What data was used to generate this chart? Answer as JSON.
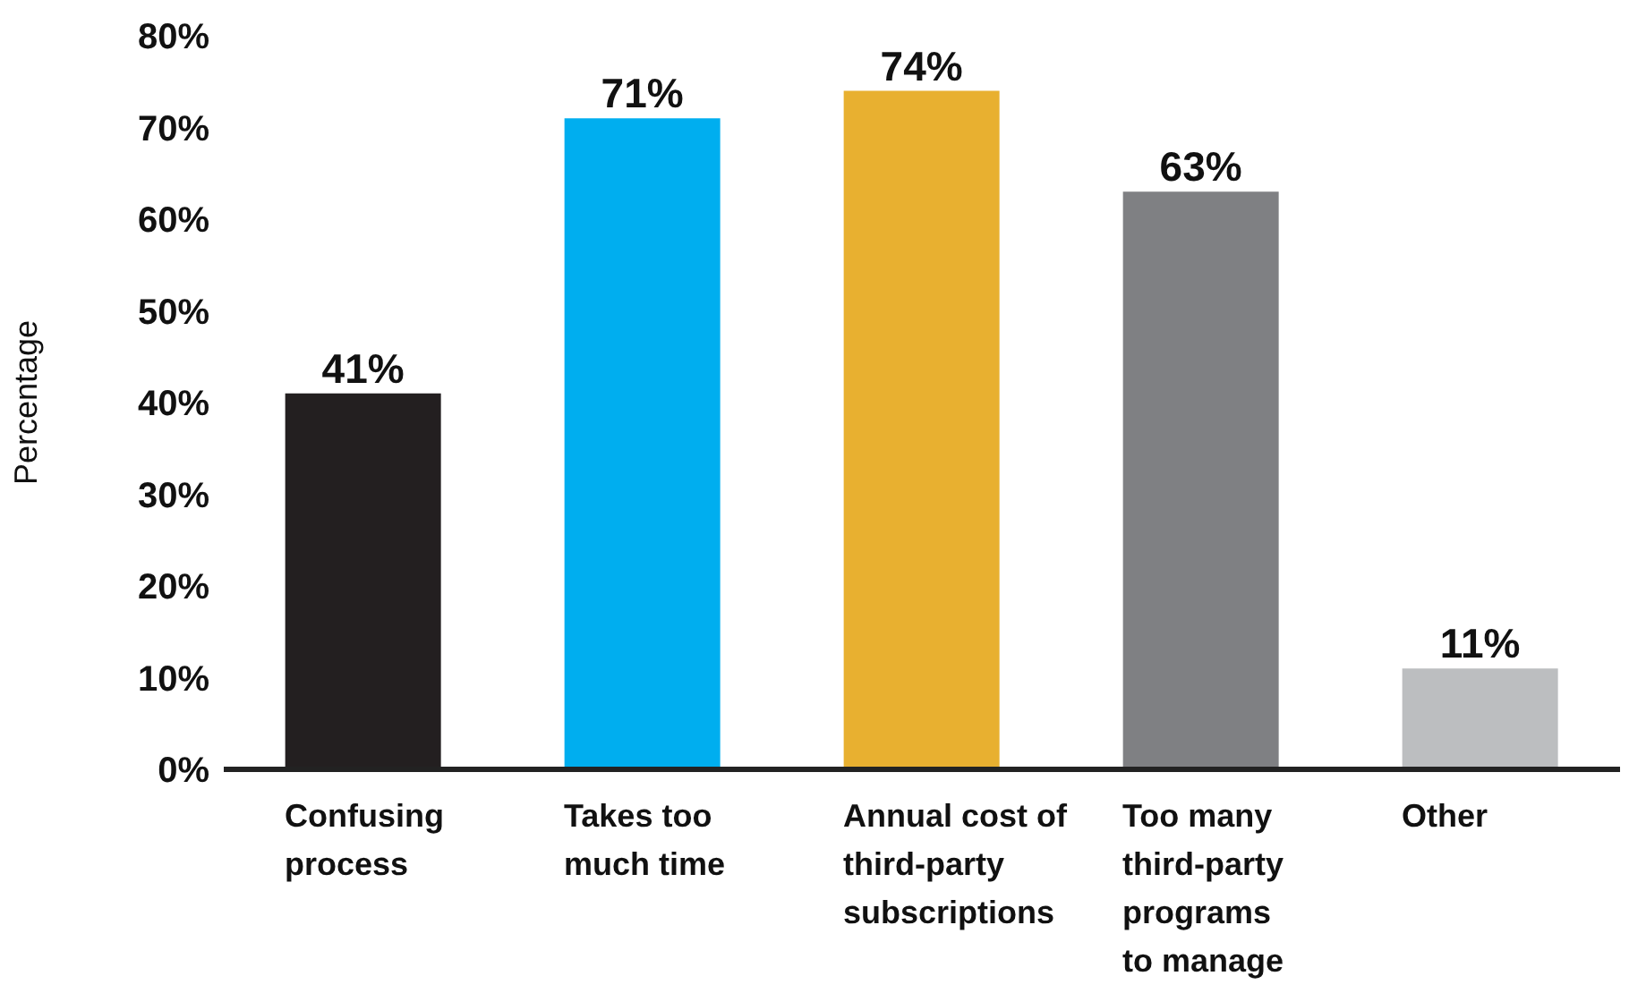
{
  "chart_data": {
    "type": "bar",
    "ylabel": "Percentage",
    "categories": [
      "Confusing process",
      "Takes too much time",
      "Annual cost of third-party subscriptions",
      "Too many third-party programs to manage",
      "Other"
    ],
    "values": [
      41,
      71,
      74,
      63,
      11
    ],
    "colors": [
      "#231f20",
      "#00aeef",
      "#e8b030",
      "#7f8083",
      "#bcbec0"
    ],
    "value_labels": [
      "41%",
      "71%",
      "74%",
      "63%",
      "11%"
    ],
    "ylim": [
      0,
      80
    ],
    "yticks": [
      {
        "value": 0,
        "label": "0%"
      },
      {
        "value": 10,
        "label": "10%"
      },
      {
        "value": 20,
        "label": "20%"
      },
      {
        "value": 30,
        "label": "30%"
      },
      {
        "value": 40,
        "label": "40%"
      },
      {
        "value": 50,
        "label": "50%"
      },
      {
        "value": 60,
        "label": "60%"
      },
      {
        "value": 70,
        "label": "70%"
      },
      {
        "value": 80,
        "label": "80%"
      }
    ]
  }
}
